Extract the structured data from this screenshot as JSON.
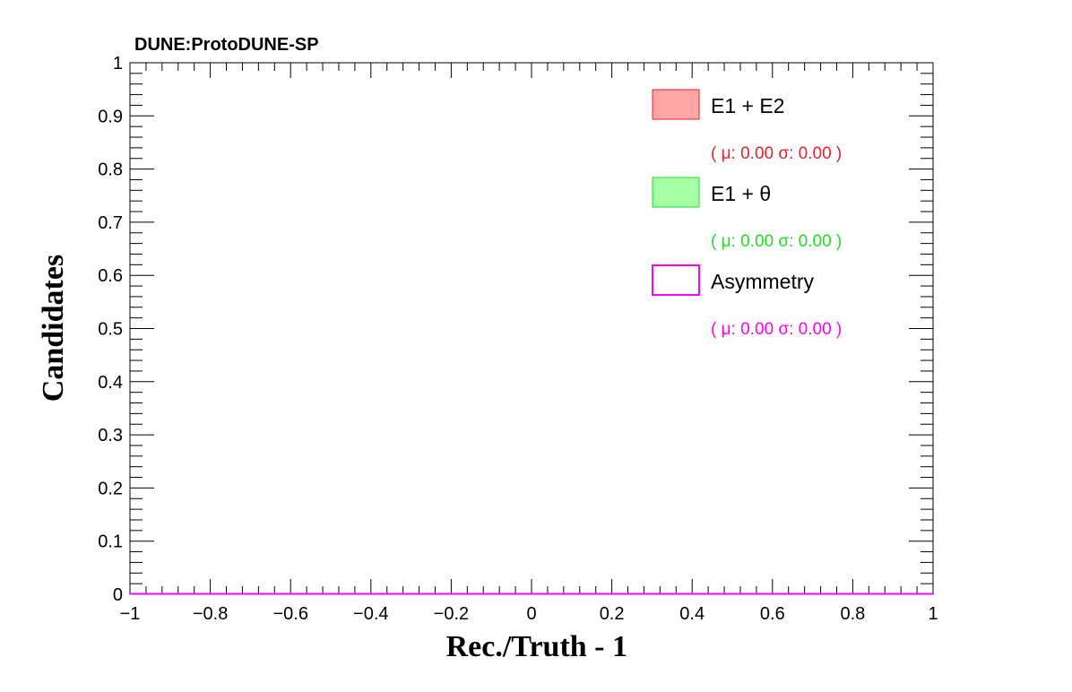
{
  "chart_data": {
    "type": "bar",
    "title": "DUNE:ProtoDUNE-SP",
    "xlabel": "Rec./Truth - 1",
    "ylabel": "Candidates",
    "xlim": [
      -1,
      1
    ],
    "ylim": [
      0,
      1
    ],
    "x_ticks": [
      "−1",
      "−0.8",
      "−0.6",
      "−0.4",
      "−0.2",
      "0",
      "0.2",
      "0.4",
      "0.6",
      "0.8",
      "1"
    ],
    "y_ticks": [
      "0",
      "0.1",
      "0.2",
      "0.3",
      "0.4",
      "0.5",
      "0.6",
      "0.7",
      "0.8",
      "0.9",
      "1"
    ],
    "grid": false,
    "legend_position": "top-right",
    "series": [
      {
        "name": "E1 + E2",
        "annotation": "( μ: 0.00 σ: 0.00 )",
        "line_color": "#e8222a",
        "fill_color": "#ffa5a5",
        "values": [
          0
        ]
      },
      {
        "name": "E1 + θ",
        "annotation": "( μ: 0.00 σ: 0.00 )",
        "line_color": "#22dd22",
        "fill_color": "#a5ffa5",
        "values": [
          0
        ]
      },
      {
        "name": "Asymmetry",
        "annotation": "( μ: 0.00 σ: 0.00 )",
        "line_color": "#ff00ff",
        "fill_color": "none",
        "values": [
          0
        ]
      }
    ]
  }
}
